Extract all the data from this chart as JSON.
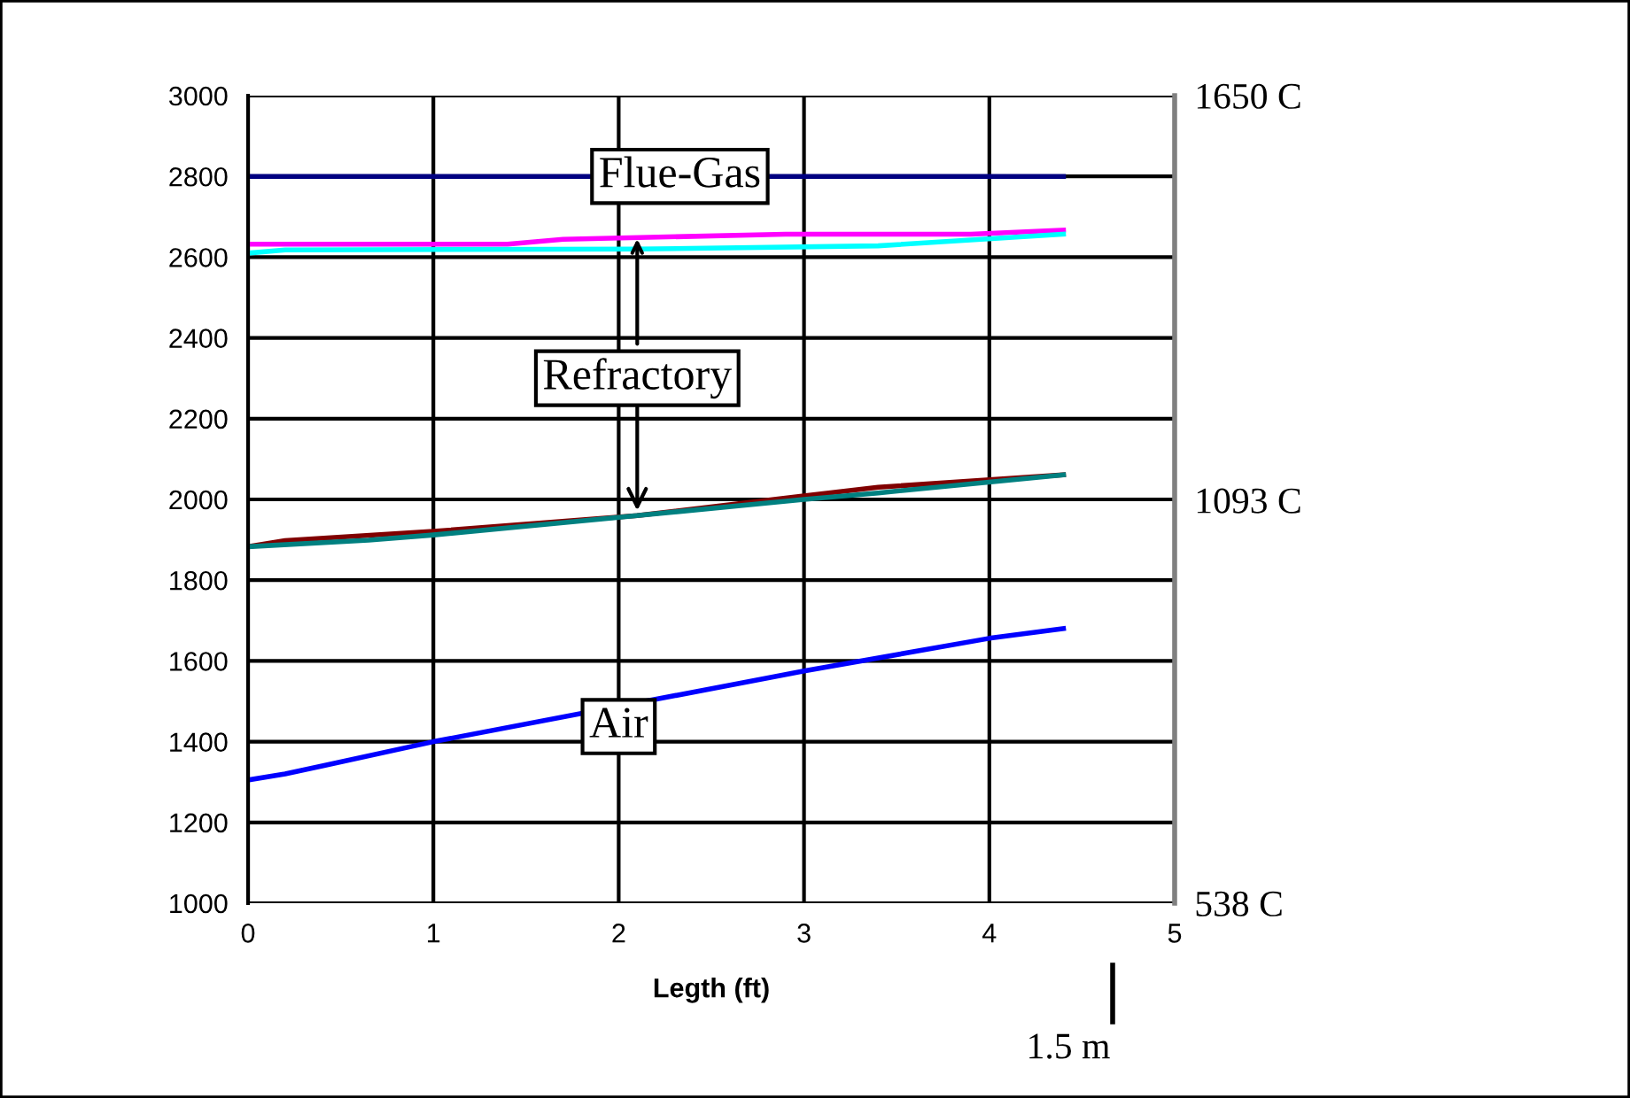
{
  "chart_data": {
    "type": "line",
    "xlabel": "Legth (ft)",
    "xlim": [
      0,
      5
    ],
    "xticks": [
      0,
      1,
      2,
      3,
      4,
      5
    ],
    "ylim": [
      1000,
      3000
    ],
    "yticks": [
      1000,
      1200,
      1400,
      1600,
      1800,
      2000,
      2200,
      2400,
      2600,
      2800,
      3000
    ],
    "y2lim": [
      538,
      1650
    ],
    "y2ticks": [
      {
        "value": 538,
        "label": "538 C"
      },
      {
        "value": 1093,
        "label": "1093 C"
      },
      {
        "value": 1650,
        "label": "1650 C"
      }
    ],
    "grid": true,
    "legend": false,
    "marker": "none",
    "line_style": "solid",
    "series": [
      {
        "color": "#000080",
        "x": [
          0,
          4.4
        ],
        "values": [
          2800,
          2800
        ]
      },
      {
        "color": "#ff00ff",
        "x": [
          0,
          1.4,
          1.7,
          2.9,
          3.9,
          4.4
        ],
        "values": [
          2632,
          2632,
          2644,
          2657,
          2657,
          2667
        ]
      },
      {
        "color": "#00ffff",
        "x": [
          0,
          0.2,
          2.1,
          3.4,
          4.4
        ],
        "values": [
          2610,
          2618,
          2620,
          2628,
          2657
        ]
      },
      {
        "color": "#800000",
        "x": [
          0,
          0.2,
          1,
          2.1,
          3,
          3.4,
          4.4
        ],
        "values": [
          1883,
          1898,
          1921,
          1960,
          2009,
          2030,
          2061
        ]
      },
      {
        "color": "#008080",
        "x": [
          0,
          0.65,
          1,
          2.1,
          3,
          3.4,
          4.4
        ],
        "values": [
          1883,
          1899,
          1912,
          1960,
          2000,
          2016,
          2061
        ]
      },
      {
        "color": "#0000ff",
        "x": [
          0,
          0.2,
          0.4,
          1,
          3,
          4,
          4.4
        ],
        "values": [
          1305,
          1320,
          1340,
          1400,
          1575,
          1656,
          1680
        ]
      }
    ],
    "annotations": [
      {
        "text": "Flue-Gas",
        "x": 2.33,
        "y": 2800
      },
      {
        "text": "Refractory",
        "x": 2.1,
        "y": 1960
      },
      {
        "text": "Air",
        "x": 2,
        "y": 1487
      },
      "1.5 m"
    ]
  }
}
